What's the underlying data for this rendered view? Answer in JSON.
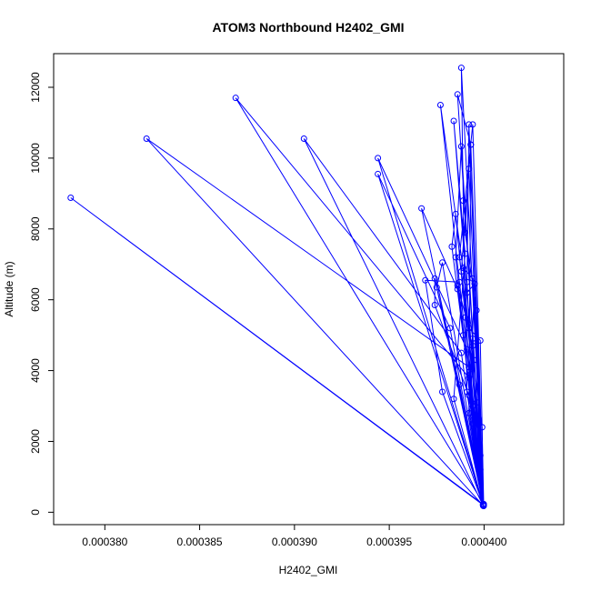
{
  "chart_data": {
    "type": "line",
    "title": "ATOM3 Northbound H2402_GMI",
    "xlabel": "H2402_GMI",
    "ylabel": "Altitude (m)",
    "xlim": [
      0.0003773,
      0.0004042
    ],
    "ylim": [
      -350,
      12950
    ],
    "x_ticks": [
      0.00038,
      0.000385,
      0.00039,
      0.000395,
      0.0004
    ],
    "x_tick_labels": [
      "0.000380",
      "0.000385",
      "0.000390",
      "0.000395",
      "0.000400"
    ],
    "y_ticks": [
      0,
      2000,
      4000,
      6000,
      8000,
      10000,
      12000
    ],
    "y_tick_labels": [
      "0",
      "2000",
      "4000",
      "6000",
      "8000",
      "10000",
      "12000"
    ],
    "grid": false,
    "legend": "none",
    "color": "#0000ff",
    "series": [
      {
        "marker": "circle",
        "points": [
          [
            0.00039996,
            200
          ],
          [
            0.0003782,
            8880
          ],
          [
            0.00039995,
            220
          ],
          [
            0.0003944,
            10000
          ],
          [
            0.0003991,
            4600
          ],
          [
            0.00039997,
            180
          ],
          [
            0.0003822,
            10550
          ],
          [
            0.0003992,
            4100
          ],
          [
            0.00039998,
            230
          ],
          [
            0.0003869,
            11700
          ],
          [
            0.0003992,
            3800
          ],
          [
            0.00039995,
            190
          ],
          [
            0.0003905,
            10550
          ],
          [
            0.0003988,
            4500
          ],
          [
            0.00039996,
            210
          ],
          [
            0.0003944,
            9550
          ],
          [
            0.0003982,
            5200
          ],
          [
            0.00039998,
            200
          ],
          [
            0.0003967,
            8580
          ],
          [
            0.0003986,
            6300
          ],
          [
            0.00039997,
            180
          ],
          [
            0.0003988,
            12550
          ],
          [
            0.0003989,
            8800
          ],
          [
            0.0003991,
            3400
          ],
          [
            0.00039995,
            230
          ],
          [
            0.0003986,
            11800
          ],
          [
            0.0003993,
            10380
          ],
          [
            0.0003992,
            2800
          ],
          [
            0.00039998,
            200
          ],
          [
            0.0003984,
            11050
          ],
          [
            0.000399,
            7300
          ],
          [
            0.0003984,
            3200
          ],
          [
            0.00039996,
            190
          ],
          [
            0.0003977,
            11500
          ],
          [
            0.0003994,
            4900
          ],
          [
            0.00039997,
            220
          ],
          [
            0.0003992,
            10950
          ],
          [
            0.0003991,
            6500
          ],
          [
            0.0003994,
            3000
          ],
          [
            0.00039995,
            200
          ],
          [
            0.0003994,
            10950
          ],
          [
            0.0003987,
            7200
          ],
          [
            0.0003996,
            3100
          ],
          [
            0.00039998,
            180
          ],
          [
            0.0003993,
            10380
          ],
          [
            0.0003988,
            6800
          ],
          [
            0.0003999,
            2400
          ],
          [
            0.00039996,
            210
          ],
          [
            0.0003988,
            10330
          ],
          [
            0.0003985,
            7200
          ],
          [
            0.0003994,
            2600
          ],
          [
            0.00039997,
            200
          ],
          [
            0.0003992,
            9700
          ],
          [
            0.000399,
            7900
          ],
          [
            0.0003996,
            5700
          ],
          [
            0.0003998,
            1200
          ],
          [
            0.00039995,
            190
          ],
          [
            0.0003985,
            8420
          ],
          [
            0.0003983,
            7500
          ],
          [
            0.0003989,
            5000
          ],
          [
            0.0003994,
            2500
          ],
          [
            0.00039998,
            220
          ],
          [
            0.0003987,
            6500
          ],
          [
            0.0003969,
            6550
          ],
          [
            0.0003978,
            3400
          ],
          [
            0.00039996,
            200
          ],
          [
            0.0003978,
            7050
          ],
          [
            0.0003975,
            6350
          ],
          [
            0.0003987,
            3600
          ],
          [
            0.00039997,
            180
          ],
          [
            0.0003974,
            6600
          ],
          [
            0.0003974,
            5850
          ],
          [
            0.0003992,
            3300
          ],
          [
            0.00039995,
            210
          ],
          [
            0.0003986,
            6400
          ],
          [
            0.0003992,
            5200
          ],
          [
            0.0003998,
            4850
          ],
          [
            0.00039998,
            200
          ],
          [
            0.0003991,
            6200
          ],
          [
            0.0003995,
            6450
          ],
          [
            0.0003993,
            3900
          ],
          [
            0.00039996,
            190
          ],
          [
            0.000399,
            5500
          ],
          [
            0.0003994,
            4700
          ],
          [
            0.0003996,
            2000
          ],
          [
            0.00039997,
            220
          ],
          [
            0.0003989,
            6900
          ],
          [
            0.0003994,
            6600
          ],
          [
            0.0003996,
            4300
          ],
          [
            0.0003998,
            1600
          ],
          [
            0.00039995,
            200
          ]
        ]
      }
    ]
  }
}
